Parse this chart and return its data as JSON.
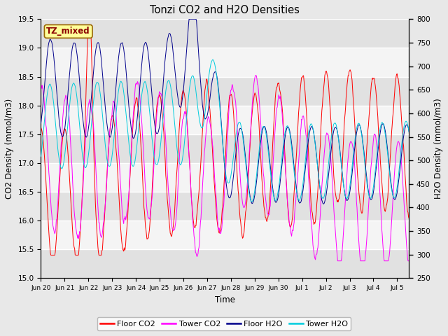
{
  "title": "Tonzi CO2 and H2O Densities",
  "xlabel": "Time",
  "ylabel_left": "CO2 Density (mmol/m3)",
  "ylabel_right": "H2O Density (mmol/m3)",
  "ylim_left": [
    15.0,
    19.5
  ],
  "ylim_right": [
    250,
    800
  ],
  "annotation_text": "TZ_mixed",
  "annotation_color": "#8B0000",
  "annotation_bg": "#FFFF99",
  "colors": {
    "floor_co2": "#FF0000",
    "tower_co2": "#FF00FF",
    "floor_h2o": "#00008B",
    "tower_h2o": "#00CCDD"
  },
  "legend_labels": [
    "Floor CO2",
    "Tower CO2",
    "Floor H2O",
    "Tower H2O"
  ],
  "fig_bg": "#E8E8E8",
  "plot_bg": "#F0F0F0",
  "grid_color": "#FFFFFF",
  "yticks_left": [
    15.0,
    15.5,
    16.0,
    16.5,
    17.0,
    17.5,
    18.0,
    18.5,
    19.0,
    19.5
  ],
  "yticks_right": [
    250,
    300,
    350,
    400,
    450,
    500,
    550,
    600,
    650,
    700,
    750,
    800
  ],
  "xtick_labels": [
    "Jun 20",
    "Jun 21",
    "Jun 22",
    "Jun 23",
    "Jun 24",
    "Jun 25",
    "Jun 26",
    "Jun 27",
    "Jun 28",
    "Jun 29",
    "Jun 30",
    "Jul 1",
    "Jul 2",
    "Jul 3",
    "Jul 4",
    "Jul 5"
  ],
  "xlim": [
    0,
    15.5
  ]
}
